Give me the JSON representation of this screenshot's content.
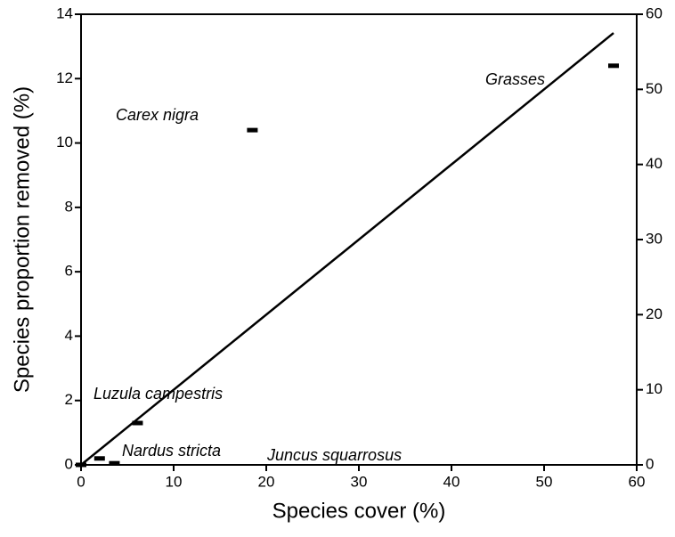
{
  "chart_data": {
    "type": "scatter",
    "x_label": "Species cover (%)",
    "y_label": "Species proportion removed (%)",
    "series": [
      {
        "color": "#000000",
        "x": [
          0,
          2.0,
          3.6,
          6.1,
          18.5,
          57.5
        ],
        "values": [
          0,
          0.2,
          0.05,
          1.3,
          10.4,
          12.4
        ]
      },
      {
        "color": "#000000",
        "axis": "y2",
        "x": [
          0,
          57.5
        ],
        "values": [
          0,
          57.5
        ]
      }
    ],
    "annotations": [
      "Grasses",
      "Carex nigra",
      "Luzula campestris",
      "Nardus stricta",
      "Juncus squarrosus"
    ],
    "xlim": [
      0,
      60
    ],
    "xticks": [
      0,
      10,
      20,
      30,
      40,
      50,
      60
    ],
    "ylim": [
      0,
      14
    ],
    "yticks": [
      0,
      2,
      4,
      6,
      8,
      10,
      12,
      14
    ],
    "y2lim": [
      0,
      60
    ],
    "y2ticks": [
      0,
      10,
      20,
      30,
      40,
      50,
      60
    ]
  }
}
